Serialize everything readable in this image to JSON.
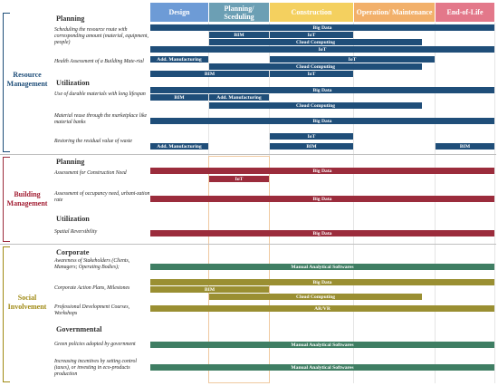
{
  "colors": {
    "design": "#6d9bd6",
    "planning": "#6c9fb4",
    "construction": "#f4d05f",
    "operation": "#f2b06a",
    "eol": "#e3788a",
    "resource": "#1f4e79",
    "building": "#9b2c3c",
    "social_green": "#3f7e63",
    "social_olive": "#9a8f32",
    "resource_label": "#1f4e79",
    "building_label": "#a31f34",
    "social_label": "#a08a14"
  },
  "columns": [
    {
      "key": "design",
      "label": "Design"
    },
    {
      "key": "planning",
      "label": "Planning/ Sceduling"
    },
    {
      "key": "construction",
      "label": "Construction"
    },
    {
      "key": "operation",
      "label": "Operation/ Maintenance"
    },
    {
      "key": "eol",
      "label": "End-of-Life"
    }
  ],
  "groups": {
    "resource": {
      "label": "Resource Management"
    },
    "building": {
      "label": "Building Management"
    },
    "social": {
      "label": "Social Involvement"
    }
  },
  "sections": [
    {
      "label": "Planning"
    },
    {
      "label": "Utilization"
    },
    {
      "label": "Planning"
    },
    {
      "label": "Utilization"
    },
    {
      "label": "Corporate"
    },
    {
      "label": "Governmental"
    }
  ],
  "tasks": [
    {
      "label": "Scheduling the resource route with corresponding amount (material, equipment, people)"
    },
    {
      "label": "Health Assessment of a Building Mate-rial"
    },
    {
      "label": "Use of durable materials with long lifespan"
    },
    {
      "label": "Material reuse through the marketplace like material banks"
    },
    {
      "label": "Restoring the residual value of waste"
    },
    {
      "label": "Assessment for Construction Need"
    },
    {
      "label": "Assessment of occupancy need, urbani-zation rate"
    },
    {
      "label": "Spatial Reversibility"
    },
    {
      "label": "Awareness of Stakeholders (Clients, Managers; Operating Bodies);"
    },
    {
      "label": "Corporate Action Plans, Milestones"
    },
    {
      "label": "Professional Development Courses, Workshops"
    },
    {
      "label": "Green policies adopted by government"
    },
    {
      "label": "Increasing incentives by setting control (taxes), or investing in eco-products production"
    }
  ],
  "bars": [
    {
      "label": "Big Data"
    },
    {
      "label": "BIM"
    },
    {
      "label": "IoT"
    },
    {
      "label": "Cloud Computing"
    },
    {
      "label": "IoT"
    },
    {
      "label": "Add. Manufacturing"
    },
    {
      "label": "IoT"
    },
    {
      "label": "Cloud Computing"
    },
    {
      "label": "BIM"
    },
    {
      "label": "IoT"
    },
    {
      "label": "Big Data"
    },
    {
      "label": "BIM"
    },
    {
      "label": "Add. Manufacturing"
    },
    {
      "label": "Cloud Computing"
    },
    {
      "label": "Big Data"
    },
    {
      "label": "IoT"
    },
    {
      "label": "Add. Manufacturing"
    },
    {
      "label": "BIM"
    },
    {
      "label": "BIM"
    },
    {
      "label": "Big Data"
    },
    {
      "label": "IoT"
    },
    {
      "label": "Big Data"
    },
    {
      "label": "Big Data"
    },
    {
      "label": "Manual Analytical Softwares"
    },
    {
      "label": "Big Data"
    },
    {
      "label": "BIM"
    },
    {
      "label": "Cloud Computing"
    },
    {
      "label": "AR/VR"
    },
    {
      "label": "Manual Analytical Softwares"
    },
    {
      "label": "Manual Analytical Softwares"
    }
  ]
}
